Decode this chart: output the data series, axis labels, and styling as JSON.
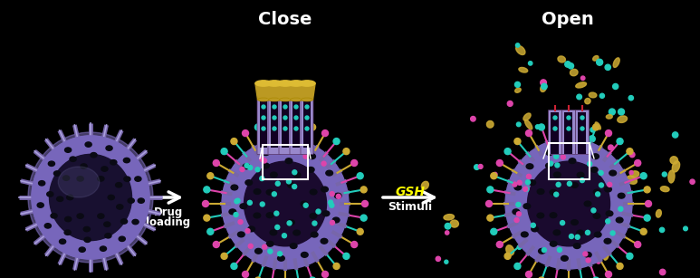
{
  "background_color": "#000000",
  "title_close": "Close",
  "title_open": "Open",
  "arrow1_label_line1": "Drug",
  "arrow1_label_line2": "loading",
  "arrow2_label_line1": "GSH",
  "arrow2_label_line2": "Stimuli",
  "arrow_color": "#ffffff",
  "gsh_color": "#ffff00",
  "stimuli_color": "#ffffff",
  "close_title_color": "#ffffff",
  "open_title_color": "#ffffff",
  "np_body": "#7766bb",
  "np_rim": "#8877cc",
  "np_dark": "#221144",
  "np_mid": "#554488",
  "pore_color": "#0a0a14",
  "drug_yellow": "#ccaa33",
  "drug_pink": "#dd44aa",
  "drug_cyan": "#22ccbb",
  "tube_body": "#9988cc",
  "tube_inner": "#110022",
  "tube_cap": "#bb9922",
  "spike_color": "#7766aa",
  "zoom_line_color": "#ffffff",
  "fig_width": 7.73,
  "fig_height": 3.07,
  "dpi": 100
}
